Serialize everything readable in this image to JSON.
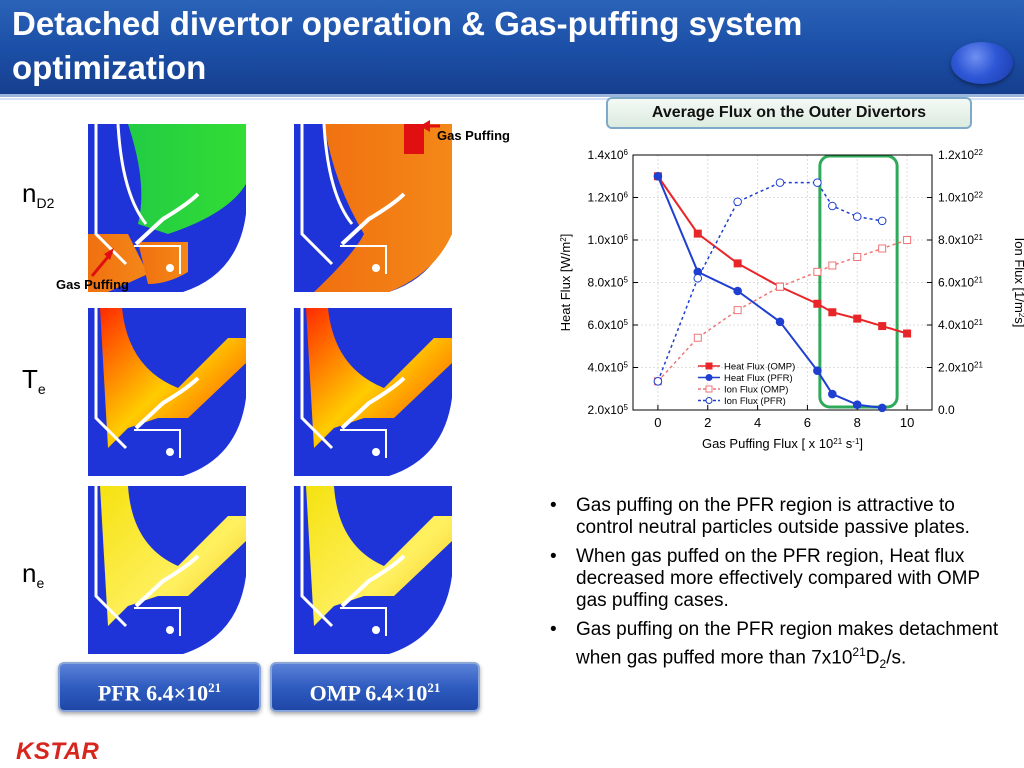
{
  "header": {
    "title": "Detached divertor operation & Gas-puffing system optimization"
  },
  "chart_box": {
    "title": "Average Flux on the Outer Divertors"
  },
  "rows": [
    {
      "label_main": "n",
      "label_sub": "D2"
    },
    {
      "label_main": "T",
      "label_sub": "e"
    },
    {
      "label_main": "n",
      "label_sub": "e"
    }
  ],
  "gas_puffing_label": "Gas Puffing",
  "cases": [
    {
      "name": "PFR",
      "value_base": "6.4×10",
      "value_exp": "21"
    },
    {
      "name": "OMP",
      "value_base": "6.4×10",
      "value_exp": "21"
    }
  ],
  "colors": {
    "header_blue": "#1b4ea6",
    "heat_series": "#e8262a",
    "pfr_series": "#1e3fd0",
    "omp_ion_series": "#f07575",
    "pfr_ion_series": "#1e3fd0",
    "highlight": "#2faa5a",
    "logo_red": "#d7261e"
  },
  "chart_data": {
    "type": "line",
    "xlabel": "Gas Puffing Flux [ x 10^21 s^-1]",
    "ylabel_left": "Heat Flux [W/m^2]",
    "ylabel_right": "Ion Flux [1/m^2s]",
    "xlim": [
      -1,
      11
    ],
    "xticks": [
      0,
      2,
      4,
      6,
      8,
      10
    ],
    "ylim_left": [
      200000.0,
      1400000.0
    ],
    "ylim_right": [
      0.0,
      1.2e+22
    ],
    "yticks_left": [
      {
        "v": 200000,
        "base": "2.0x10",
        "exp": "5"
      },
      {
        "v": 400000,
        "base": "4.0x10",
        "exp": "5"
      },
      {
        "v": 600000,
        "base": "6.0x10",
        "exp": "5"
      },
      {
        "v": 800000,
        "base": "8.0x10",
        "exp": "5"
      },
      {
        "v": 1000000,
        "base": "1.0x10",
        "exp": "6"
      },
      {
        "v": 1200000,
        "base": "1.2x10",
        "exp": "6"
      },
      {
        "v": 1400000,
        "base": "1.4x10",
        "exp": "6"
      }
    ],
    "yticks_right": [
      {
        "v": 0,
        "base": "0.0",
        "exp": ""
      },
      {
        "v": 2e+21,
        "base": "2.0x10",
        "exp": "21"
      },
      {
        "v": 4e+21,
        "base": "4.0x10",
        "exp": "21"
      },
      {
        "v": 6e+21,
        "base": "6.0x10",
        "exp": "21"
      },
      {
        "v": 8e+21,
        "base": "8.0x10",
        "exp": "21"
      },
      {
        "v": 1e+22,
        "base": "1.0x10",
        "exp": "22"
      },
      {
        "v": 1.2e+22,
        "base": "1.2x10",
        "exp": "22"
      }
    ],
    "grid": true,
    "legend_position": "bottom-center",
    "series": [
      {
        "name": "Heat Flux (OMP)",
        "axis": "left",
        "marker": "square-filled",
        "dash": false,
        "color": "#e8262a",
        "x": [
          0,
          1.6,
          3.2,
          4.9,
          6.4,
          7.0,
          8.0,
          9.0,
          10.0
        ],
        "y": [
          1300000,
          1030000,
          890000,
          780000,
          700000,
          660000,
          630000,
          595000,
          560000
        ]
      },
      {
        "name": "Heat Flux (PFR)",
        "axis": "left",
        "marker": "circle-filled",
        "dash": false,
        "color": "#1e3fd0",
        "x": [
          0,
          1.6,
          3.2,
          4.9,
          6.4,
          7.0,
          8.0,
          9.0
        ],
        "y": [
          1300000,
          850000,
          760000,
          615000,
          385000,
          275000,
          225000,
          210000
        ]
      },
      {
        "name": "Ion Flux (OMP)",
        "axis": "right",
        "marker": "square-open",
        "dash": true,
        "color": "#f07575",
        "x": [
          0,
          1.6,
          3.2,
          4.9,
          6.4,
          7.0,
          8.0,
          9.0,
          10.0
        ],
        "y": [
          1.35e+21,
          3.4e+21,
          4.7e+21,
          5.8e+21,
          6.5e+21,
          6.8e+21,
          7.2e+21,
          7.6e+21,
          8e+21
        ]
      },
      {
        "name": "Ion Flux (PFR)",
        "axis": "right",
        "marker": "circle-open",
        "dash": true,
        "color": "#1e3fd0",
        "x": [
          0,
          1.6,
          3.2,
          4.9,
          6.4,
          7.0,
          8.0,
          9.0
        ],
        "y": [
          1.35e+21,
          6.2e+21,
          9.8e+21,
          1.07e+22,
          1.07e+22,
          9.6e+21,
          9.1e+21,
          8.9e+21
        ]
      }
    ],
    "highlight_range_x": [
      6.5,
      9.6
    ]
  },
  "bullets": [
    {
      "text": "Gas puffing on the PFR region is attractive to control neutral particles outside passive plates."
    },
    {
      "text": "When gas puffed on the PFR region, Heat flux decreased more effectively compared with OMP gas puffing cases."
    },
    {
      "pre": "Gas puffing on the PFR region makes detachment when gas puffed more than 7x10",
      "sup": "21",
      "mid": "D",
      "sub": "2",
      "post": "/s."
    }
  ],
  "logo": {
    "text": "KSTAR"
  }
}
